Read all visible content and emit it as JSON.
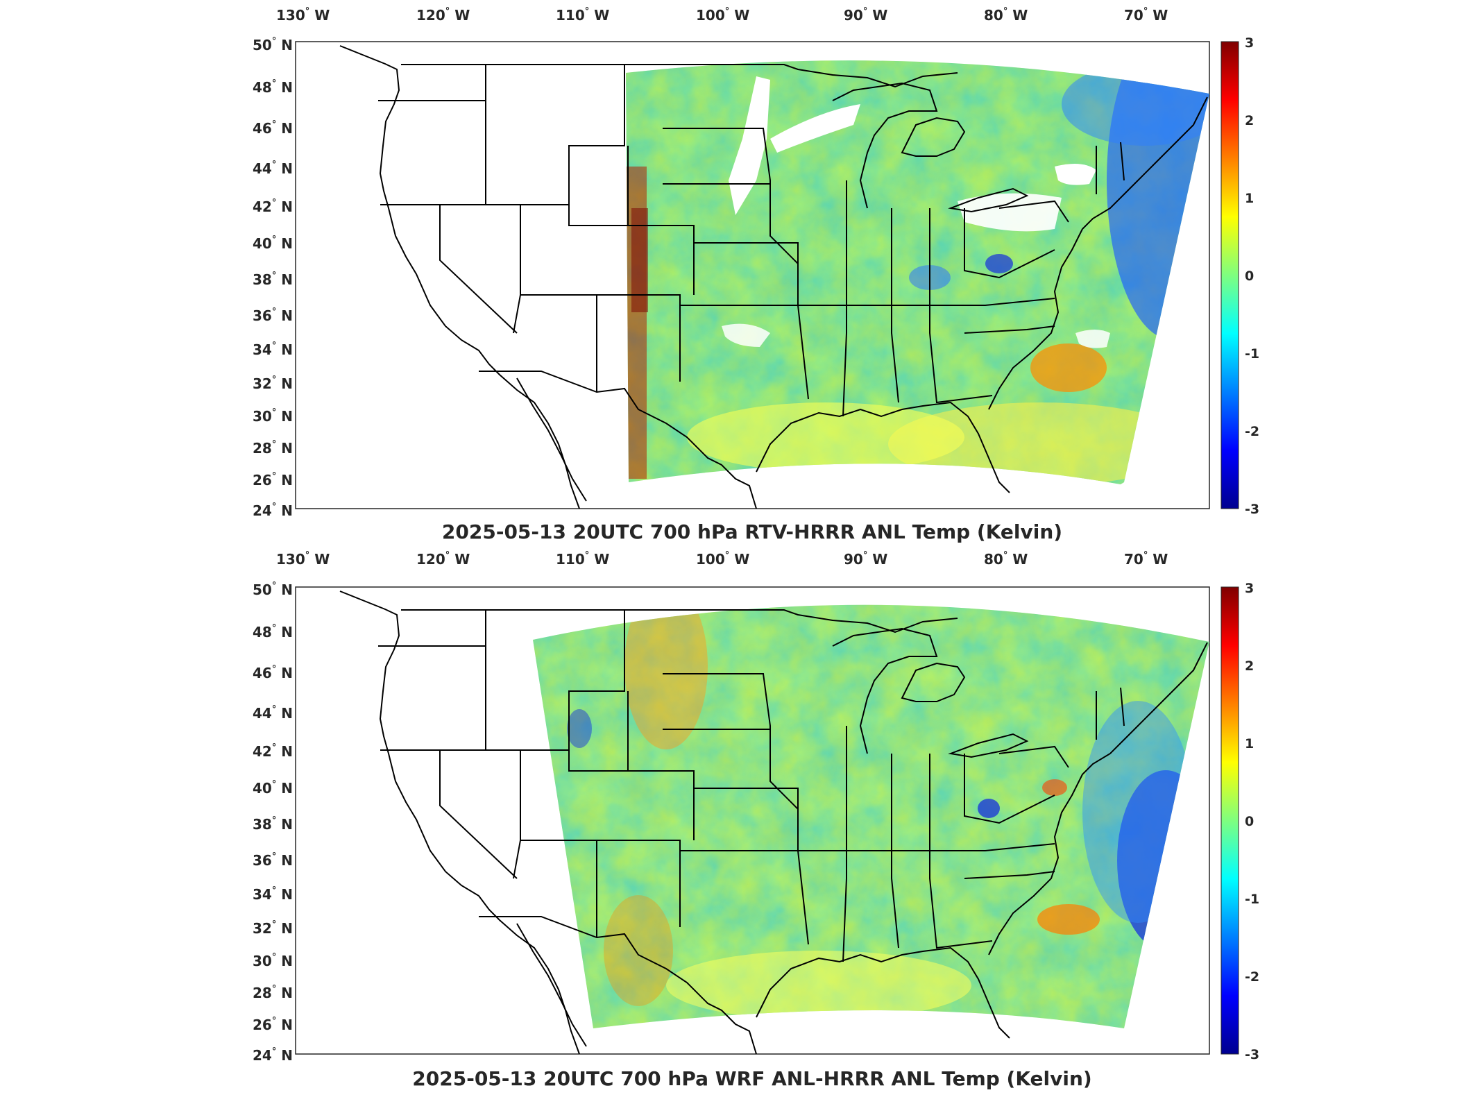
{
  "lon_labels": [
    "130",
    "120",
    "110",
    "100",
    "90",
    "80",
    "70"
  ],
  "lon_suffix": "W",
  "lat_labels": [
    "50",
    "48",
    "46",
    "44",
    "42",
    "40",
    "38",
    "36",
    "34",
    "32",
    "30",
    "28",
    "26",
    "24"
  ],
  "lat_suffix": "N",
  "degree_symbol": "°",
  "colorbar": {
    "colormap": "jet",
    "ticks": [
      "3",
      "2",
      "1",
      "0",
      "-1",
      "-2",
      "-3"
    ],
    "range": [
      -3,
      3
    ]
  },
  "panels": [
    {
      "title": "2025-05-13 20UTC 700 hPa RTV-HRRR ANL Temp (Kelvin)",
      "coverage": "partial domain (east of ~107 W), white gaps over plains and Great Lakes"
    },
    {
      "title": "2025-05-13 20UTC 700 hPa WRF ANL-HRRR ANL Temp (Kelvin)",
      "coverage": "full domain (east of ~113 W)"
    }
  ],
  "colors": {
    "coast": "#000000",
    "frame": "#262626",
    "cold": "#00008f",
    "neutral": "#4fd46a",
    "warm": "#ffe600",
    "hot": "#800000"
  }
}
